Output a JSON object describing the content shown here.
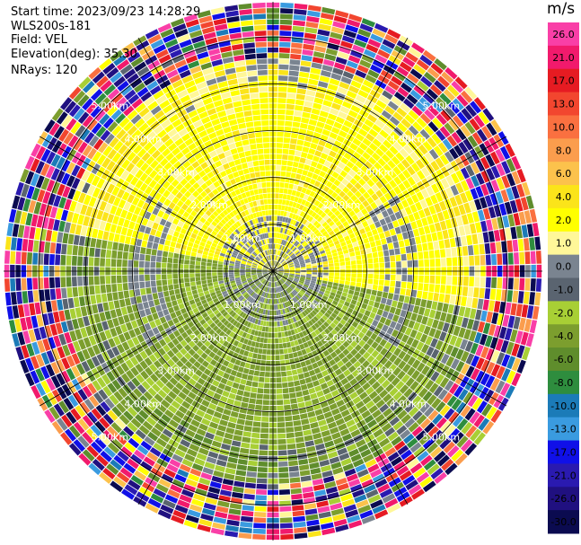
{
  "header": {
    "start_time": "Start time: 2023/09/23 14:28:29",
    "instrument": "WLS200s-181",
    "field": "Field: VEL",
    "elevation": "Elevation(deg): 35.30",
    "nrays": "NRays: 120"
  },
  "chart_data": {
    "type": "heatmap",
    "projection": "polar (PPI scan)",
    "field": "VEL",
    "units": "m/s",
    "n_rays": 120,
    "range_rings_km": [
      1.0,
      2.0,
      3.0,
      4.0,
      5.0
    ],
    "range_labels": [
      "1.00km",
      "2.00km",
      "3.00km",
      "4.00km",
      "5.00km"
    ],
    "colorbar": {
      "label": "m/s",
      "ticks": [
        "26.0",
        "21.0",
        "17.0",
        "13.0",
        "10.0",
        "8.0",
        "6.0",
        "4.0",
        "2.0",
        "1.0",
        "0.0",
        "-1.0",
        "-2.0",
        "-4.0",
        "-6.0",
        "-8.0",
        "-10.0",
        "-13.0",
        "-17.0",
        "-21.0",
        "-26.0",
        "-30.0"
      ],
      "bins": [
        {
          "from": 26.0,
          "to": 30.0,
          "color": "#f93fa7"
        },
        {
          "from": 21.0,
          "to": 26.0,
          "color": "#f11a6c"
        },
        {
          "from": 17.0,
          "to": 21.0,
          "color": "#e61b22"
        },
        {
          "from": 13.0,
          "to": 17.0,
          "color": "#f2462f"
        },
        {
          "from": 10.0,
          "to": 13.0,
          "color": "#fa7040"
        },
        {
          "from": 8.0,
          "to": 10.0,
          "color": "#fb9d4d"
        },
        {
          "from": 6.0,
          "to": 8.0,
          "color": "#fcc24c"
        },
        {
          "from": 4.0,
          "to": 6.0,
          "color": "#fbe41a"
        },
        {
          "from": 2.0,
          "to": 4.0,
          "color": "#ffff00"
        },
        {
          "from": 1.0,
          "to": 2.0,
          "color": "#fff799"
        },
        {
          "from": 0.0,
          "to": 1.0,
          "color": "#7a8490"
        },
        {
          "from": -1.0,
          "to": 0.0,
          "color": "#5a6470"
        },
        {
          "from": -2.0,
          "to": -1.0,
          "color": "#a8cf35"
        },
        {
          "from": -4.0,
          "to": -2.0,
          "color": "#7c9e2e"
        },
        {
          "from": -6.0,
          "to": -4.0,
          "color": "#5f8d2c"
        },
        {
          "from": -8.0,
          "to": -6.0,
          "color": "#2e8d3e"
        },
        {
          "from": -10.0,
          "to": -8.0,
          "color": "#1b7bb8"
        },
        {
          "from": -13.0,
          "to": -10.0,
          "color": "#3a9be0"
        },
        {
          "from": -17.0,
          "to": -13.0,
          "color": "#1010e8"
        },
        {
          "from": -21.0,
          "to": -17.0,
          "color": "#2a1ab0"
        },
        {
          "from": -26.0,
          "to": -21.0,
          "color": "#201080"
        },
        {
          "from": -30.0,
          "to": -26.0,
          "color": "#0b0b50"
        }
      ]
    }
  }
}
